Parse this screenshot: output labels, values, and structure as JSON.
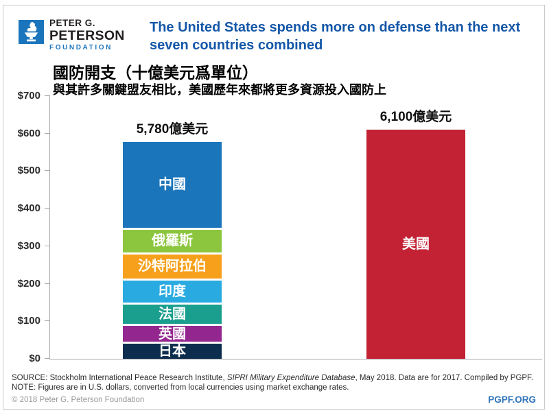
{
  "header": {
    "logo": {
      "line1": "PETER G.",
      "line2": "PETERSON",
      "line3": "FOUNDATION",
      "box_color": "#1b75bc"
    },
    "title_line1": "The United States spends more on defense than the next",
    "title_line2": "seven countries combined",
    "title_color": "#1457a8"
  },
  "chart": {
    "title": "國防開支（十億美元爲單位）",
    "subtitle": "與其許多關鍵盟友相比，美國歷年來都將更多資源投入國防上"
  },
  "chart_data": {
    "type": "bar",
    "stacked": true,
    "title": "國防開支（十億美元爲單位）",
    "subtitle": "與其許多關鍵盟友相比，美國歷年來都將更多資源投入國防上",
    "ylim": [
      0,
      700
    ],
    "grid": false,
    "y_ticks": [
      {
        "value": 0,
        "label": "$0"
      },
      {
        "value": 100,
        "label": "$100"
      },
      {
        "value": 200,
        "label": "$200"
      },
      {
        "value": 300,
        "label": "$300"
      },
      {
        "value": 400,
        "label": "$400"
      },
      {
        "value": 500,
        "label": "$500"
      },
      {
        "value": 600,
        "label": "$600"
      },
      {
        "value": 700,
        "label": "$700"
      }
    ],
    "bars": [
      {
        "name": "next-seven-combined",
        "total": 578,
        "total_label": "5,780億美元",
        "segments": [
          {
            "id": "japan",
            "label": "日本",
            "value": 45.4,
            "color": "#0d2d4e"
          },
          {
            "id": "uk",
            "label": "英國",
            "value": 47.2,
            "color": "#93278f"
          },
          {
            "id": "france",
            "label": "法國",
            "value": 57.8,
            "color": "#1a9e8e"
          },
          {
            "id": "india",
            "label": "印度",
            "value": 63.9,
            "color": "#29aae1"
          },
          {
            "id": "saudi-arabia",
            "label": "沙特阿拉伯",
            "value": 69.4,
            "color": "#f7a01b"
          },
          {
            "id": "russia",
            "label": "俄羅斯",
            "value": 66.3,
            "color": "#8cc63e"
          },
          {
            "id": "china",
            "label": "中國",
            "value": 228.0,
            "color": "#1b75bb"
          }
        ]
      },
      {
        "name": "united-states",
        "total": 610,
        "total_label": "6,100億美元",
        "segments": [
          {
            "id": "united-states",
            "label": "美國",
            "value": 610,
            "color": "#c32134"
          }
        ]
      }
    ]
  },
  "footer": {
    "source_prefix": "SOURCE: Stockholm International Peace Research Institute, ",
    "source_italic": "SIPRI Military Expenditure Database",
    "source_suffix": ", May 2018. Data are for 2017. Compiled by PGPF.",
    "note": "NOTE: Figures are in U.S. dollars, converted from local currencies using market exchange rates.",
    "copyright": "© 2018 Peter G. Peterson Foundation",
    "site": "PGPF.ORG"
  }
}
